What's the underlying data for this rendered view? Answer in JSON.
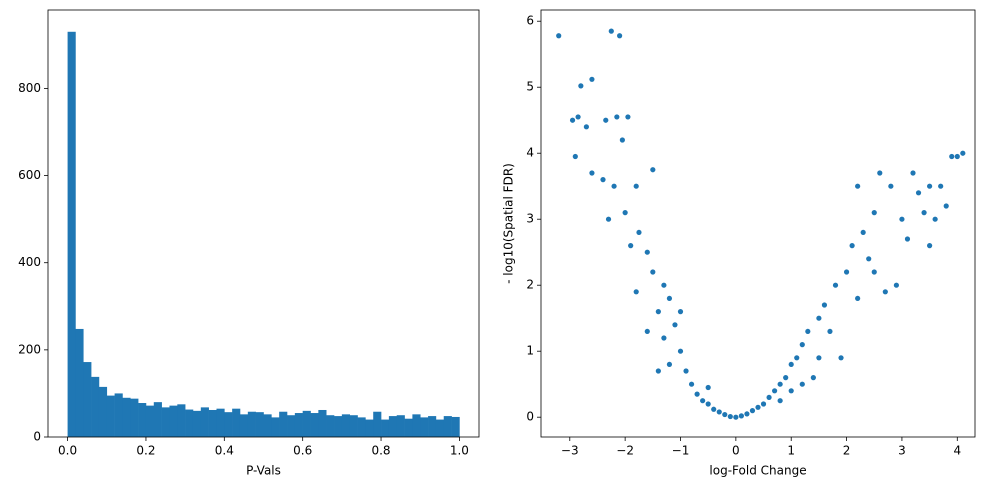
{
  "chart_data": [
    {
      "type": "histogram",
      "xlabel": "P-Vals",
      "color": "#1f77b4",
      "bins": [
        0,
        0.02,
        0.04,
        0.06,
        0.08,
        0.1,
        0.12,
        0.14,
        0.16,
        0.18,
        0.2,
        0.22,
        0.24,
        0.26,
        0.28,
        0.3,
        0.32,
        0.34,
        0.36,
        0.38,
        0.4,
        0.42,
        0.44,
        0.46,
        0.48,
        0.5,
        0.52,
        0.54,
        0.56,
        0.58,
        0.6,
        0.62,
        0.64,
        0.66,
        0.68,
        0.7,
        0.72,
        0.74,
        0.76,
        0.78,
        0.8,
        0.82,
        0.84,
        0.86,
        0.88,
        0.9,
        0.92,
        0.94,
        0.96,
        0.98,
        1.0
      ],
      "counts": [
        930,
        248,
        172,
        138,
        115,
        95,
        100,
        90,
        88,
        78,
        72,
        80,
        68,
        72,
        75,
        63,
        60,
        68,
        62,
        65,
        57,
        65,
        52,
        58,
        57,
        52,
        45,
        58,
        50,
        55,
        60,
        55,
        62,
        50,
        48,
        52,
        50,
        45,
        40,
        58,
        40,
        48,
        50,
        42,
        52,
        45,
        48,
        40,
        48,
        46
      ],
      "xlim": [
        -0.05,
        1.05
      ],
      "ylim": [
        0,
        980
      ],
      "xticks": [
        {
          "value": 0,
          "label": "0.0"
        },
        {
          "value": 0.2,
          "label": "0.2"
        },
        {
          "value": 0.4,
          "label": "0.4"
        },
        {
          "value": 0.6,
          "label": "0.6"
        },
        {
          "value": 0.8,
          "label": "0.8"
        },
        {
          "value": 1,
          "label": "1.0"
        }
      ],
      "yticks": [
        0,
        200,
        400,
        600,
        800
      ]
    },
    {
      "type": "scatter",
      "xlabel": "log-Fold Change",
      "ylabel": "- log10(Spatial FDR)",
      "color": "#1f77b4",
      "x": [
        -3.2,
        -2.95,
        -2.85,
        -2.8,
        -2.6,
        -2.7,
        -2.9,
        -2.35,
        -2.25,
        -2.1,
        -2.15,
        -1.95,
        -2.05,
        -2.6,
        -2.4,
        -2.2,
        -1.5,
        -1.8,
        -2.3,
        -2.0,
        -1.75,
        -1.9,
        -1.6,
        -1.5,
        -1.8,
        -1.3,
        -1.4,
        -1.2,
        -1.1,
        -1.3,
        -1.0,
        -1.2,
        -0.9,
        -0.8,
        -1.4,
        -0.7,
        -0.6,
        -0.5,
        -0.4,
        -0.3,
        -0.2,
        -0.1,
        0,
        0.1,
        0.2,
        0.3,
        0.4,
        0.5,
        0.6,
        0.7,
        0.8,
        0.9,
        1.0,
        0.8,
        1.1,
        1.2,
        1.3,
        1.0,
        1.5,
        1.4,
        1.6,
        1.8,
        1.7,
        2.0,
        1.9,
        2.1,
        2.2,
        2.3,
        2.5,
        2.4,
        2.6,
        2.2,
        2.8,
        2.9,
        2.7,
        3.0,
        3.1,
        3.2,
        3.5,
        3.4,
        3.7,
        3.9,
        4.0,
        4.1,
        3.8,
        3.5,
        3.6,
        2.5,
        1.5,
        -0.5,
        -1.0,
        -1.6,
        1.2,
        3.3
      ],
      "y": [
        5.78,
        4.5,
        4.55,
        5.02,
        5.12,
        4.4,
        3.95,
        4.5,
        5.85,
        5.78,
        4.55,
        4.55,
        4.2,
        3.7,
        3.6,
        3.5,
        3.75,
        3.5,
        3.0,
        3.1,
        2.8,
        2.6,
        2.5,
        2.2,
        1.9,
        2.0,
        1.6,
        1.8,
        1.4,
        1.2,
        1.0,
        0.8,
        0.7,
        0.5,
        0.7,
        0.35,
        0.25,
        0.2,
        0.12,
        0.08,
        0.04,
        0.01,
        0,
        0.02,
        0.05,
        0.1,
        0.15,
        0.2,
        0.3,
        0.4,
        0.5,
        0.6,
        0.8,
        0.25,
        0.9,
        1.1,
        1.3,
        0.4,
        1.5,
        0.6,
        1.7,
        2.0,
        1.3,
        2.2,
        0.9,
        2.6,
        1.8,
        2.8,
        3.1,
        2.4,
        3.7,
        3.5,
        3.5,
        2.0,
        1.9,
        3.0,
        2.7,
        3.7,
        3.5,
        3.1,
        3.5,
        3.95,
        3.95,
        4.0,
        3.2,
        2.6,
        3.0,
        2.2,
        0.9,
        0.45,
        1.6,
        1.3,
        0.5,
        3.4
      ],
      "xlim": [
        -3.52,
        4.32
      ],
      "ylim": [
        -0.3,
        6.17
      ],
      "xticks": [
        {
          "value": -3,
          "label": "−3"
        },
        {
          "value": -2,
          "label": "−2"
        },
        {
          "value": -1,
          "label": "−1"
        },
        0,
        1,
        2,
        3,
        4
      ],
      "yticks": [
        0,
        1,
        2,
        3,
        4,
        5,
        6
      ]
    }
  ]
}
